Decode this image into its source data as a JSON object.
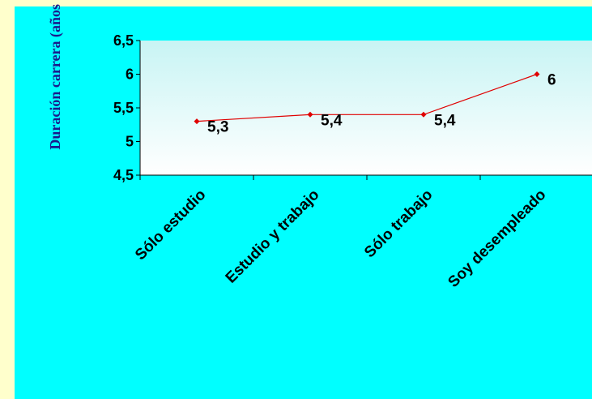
{
  "chart_data": {
    "type": "line",
    "title": "",
    "xlabel": "",
    "ylabel": "Duración carrera (años",
    "categories": [
      "Sólo estudio",
      "Estudio y trabajo",
      "Sólo trabajo",
      "Soy desempleado"
    ],
    "series": [
      {
        "values": [
          5.3,
          5.4,
          5.4,
          6
        ],
        "data_labels": [
          "5,3",
          "5,4",
          "5,4",
          "6"
        ]
      }
    ],
    "ylim": [
      4.5,
      6.5
    ],
    "yticks": [
      4.5,
      5,
      5.5,
      6,
      6.5
    ],
    "ytick_labels": [
      "4,5",
      "5",
      "5,5",
      "6",
      "6,5"
    ],
    "grid": false,
    "legend": "none"
  },
  "colors": {
    "page_background": "#FFFFCC",
    "chart_background": "#00FFFF",
    "plot_gradient_top": "#C8F4F4",
    "plot_gradient_bottom": "#FFFFFF",
    "series_color": "#E00000",
    "ylabel_color": "#1A1A8C"
  }
}
